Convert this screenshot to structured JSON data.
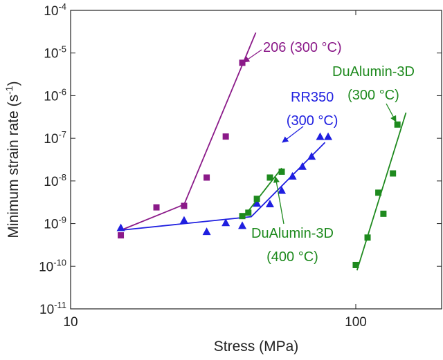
{
  "chart_data": {
    "type": "scatter",
    "xlabel": "Stress (MPa)",
    "ylabel": "Minimum strain rate (s-1)",
    "xscale": "log",
    "yscale": "log",
    "xlim": [
      10,
      200
    ],
    "ylim": [
      1e-11,
      0.0001
    ],
    "xticks": [
      10,
      100
    ],
    "yticks": [
      {
        "value": 1e-11,
        "label": "10-11"
      },
      {
        "value": 1e-10,
        "label": "10-10"
      },
      {
        "value": 1e-09,
        "label": "10-9"
      },
      {
        "value": 1e-08,
        "label": "10-8"
      },
      {
        "value": 1e-07,
        "label": "10-7"
      },
      {
        "value": 1e-06,
        "label": "10-6"
      },
      {
        "value": 1e-05,
        "label": "10-5"
      },
      {
        "value": 0.0001,
        "label": "10-4"
      }
    ],
    "series": [
      {
        "color": "#8b1a89",
        "marker": "square",
        "x": [
          15,
          20,
          25,
          30,
          35,
          40
        ],
        "y": [
          5.3e-10,
          2.4e-09,
          2.6e-09,
          1.2e-08,
          1.1e-07,
          5.9e-06
        ],
        "fit": {
          "x": [
            15,
            25,
            44.6
          ],
          "y": [
            7e-10,
            2.8e-09,
            3e-05
          ]
        }
      },
      {
        "color": "#1f1fe0",
        "marker": "triangle",
        "x": [
          15,
          25,
          30,
          35,
          40,
          45,
          50,
          55,
          60,
          65,
          70,
          75,
          80
        ],
        "y": [
          8e-10,
          1.2e-09,
          6.5e-10,
          1.05e-09,
          9e-10,
          3e-09,
          2.9e-09,
          6e-09,
          1.3e-08,
          2.2e-08,
          3.8e-08,
          1.1e-07,
          1.1e-07
        ],
        "fit": {
          "x": [
            15,
            43,
            78
          ],
          "y": [
            7e-10,
            1.45e-09,
            8e-08
          ]
        }
      },
      {
        "color": "#1e8a1e",
        "marker": "square",
        "x": [
          40,
          42,
          45,
          50,
          55
        ],
        "y": [
          1.5e-09,
          1.8e-09,
          3.8e-09,
          1.2e-08,
          1.65e-08
        ],
        "fit": {
          "x": [
            40,
            55
          ],
          "y": [
            1.3e-09,
            2e-08
          ]
        }
      },
      {
        "color": "#1e8a1e",
        "marker": "square",
        "x": [
          100,
          110,
          120,
          125,
          135,
          140
        ],
        "y": [
          1.07e-10,
          4.7e-10,
          5.3e-09,
          1.7e-09,
          1.5e-08,
          2.1e-07
        ],
        "fit": {
          "x": [
            101,
            150
          ],
          "y": [
            8e-11,
            4e-07
          ]
        }
      }
    ],
    "annotations": [
      {
        "color": "#8b1a89",
        "lines": [
          "206 (300 °C)"
        ]
      },
      {
        "color": "#1f1fe0",
        "lines": [
          "RR350",
          "(300 °C)"
        ]
      },
      {
        "color": "#1e8a1e",
        "lines": [
          "DuAlumin-3D",
          "(300 °C)"
        ]
      },
      {
        "color": "#1e8a1e",
        "lines": [
          "DuAlumin-3D",
          "(400 °C)"
        ]
      }
    ]
  }
}
